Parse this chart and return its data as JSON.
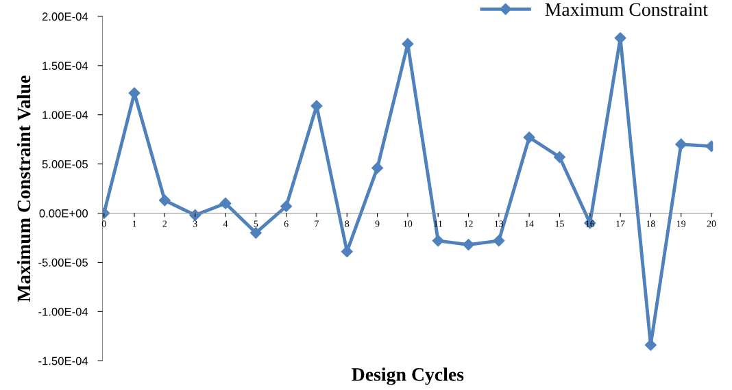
{
  "chart_data": {
    "type": "line",
    "xlabel": "Design Cycles",
    "ylabel": "Maximum Constraint Value",
    "categories": [
      "0",
      "1",
      "2",
      "3",
      "4",
      "5",
      "6",
      "7",
      "8",
      "9",
      "10",
      "11",
      "12",
      "13",
      "14",
      "15",
      "16",
      "17",
      "18",
      "19",
      "20"
    ],
    "series": [
      {
        "name": "Maximum Constraint",
        "color": "#4f81bd",
        "values": [
          0,
          0.000122,
          1.3e-05,
          -2e-06,
          1e-05,
          -2e-05,
          7e-06,
          0.000109,
          -3.9e-05,
          4.6e-05,
          0.000172,
          -2.8e-05,
          -3.2e-05,
          -2.8e-05,
          7.7e-05,
          5.7e-05,
          -1e-05,
          0.000178,
          -0.000134,
          7e-05,
          6.8e-05
        ]
      }
    ],
    "ylim": [
      -0.00015,
      0.0002
    ],
    "yticks": [
      {
        "value": -0.00015,
        "label": "-1.50E-04"
      },
      {
        "value": -0.0001,
        "label": "-1.00E-04"
      },
      {
        "value": -5e-05,
        "label": "-5.00E-05"
      },
      {
        "value": 0,
        "label": "0.00E+00"
      },
      {
        "value": 5e-05,
        "label": "5.00E-05"
      },
      {
        "value": 0.0001,
        "label": "1.00E-04"
      },
      {
        "value": 0.00015,
        "label": "1.50E-04"
      },
      {
        "value": 0.0002,
        "label": "2.00E-04"
      }
    ],
    "marker": "diamond",
    "line_style": "solid",
    "grid": false,
    "legend": "top right"
  }
}
